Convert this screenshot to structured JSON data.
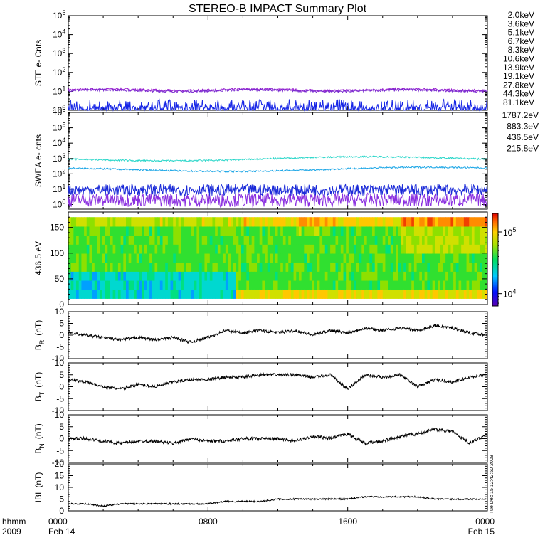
{
  "title": "STEREO-B IMPACT Summary Plot",
  "stamp": "Tue Dec 15 12:42:50 2009",
  "colors": {
    "ste": [
      "#9a1fd0",
      "#7a2ccf",
      "#1726e6",
      "#1b9ad8",
      "#25d1c4",
      "#2ee39a",
      "#21d42b",
      "#c6d81c",
      "#f0c21c",
      "#f38b17",
      "#e23c1c"
    ],
    "swea": [
      "#8a2ee0",
      "#1a2ad8",
      "#1ca6e6",
      "#29d6c9"
    ]
  },
  "chart_data": [
    {
      "type": "line",
      "name": "ste",
      "ylabel": "STE e- Cnts",
      "yscale": "log",
      "ylim": [
        1,
        100000
      ],
      "yticks": [
        [
          "10",
          "0"
        ],
        [
          "10",
          "1"
        ],
        [
          "10",
          "2"
        ],
        [
          "10",
          "3"
        ],
        [
          "10",
          "4"
        ],
        [
          "10",
          "5"
        ]
      ],
      "legend_position": "right",
      "series": [
        {
          "name": "2.0keV",
          "level": 12
        },
        {
          "name": "3.6keV",
          "level": 11
        },
        {
          "name": "5.1keV",
          "level": 1.2
        },
        {
          "name": "6.7keV"
        },
        {
          "name": "8.3keV"
        },
        {
          "name": "10.6keV"
        },
        {
          "name": "13.9keV"
        },
        {
          "name": "19.1keV"
        },
        {
          "name": "27.8keV"
        },
        {
          "name": "44.3keV"
        },
        {
          "name": "81.1keV"
        }
      ]
    },
    {
      "type": "line",
      "name": "swea",
      "ylabel": "SWEA e- cnts",
      "yscale": "log",
      "ylim": [
        0.5,
        1000000
      ],
      "yticks": [
        [
          "10",
          "0"
        ],
        [
          "10",
          "1"
        ],
        [
          "10",
          "2"
        ],
        [
          "10",
          "3"
        ],
        [
          "10",
          "4"
        ],
        [
          "10",
          "5"
        ],
        [
          "10",
          "6"
        ]
      ],
      "legend_position": "right",
      "series": [
        {
          "name": "1787.2eV",
          "level": 2
        },
        {
          "name": "883.3eV",
          "level": 9
        },
        {
          "name": "436.5eV",
          "level": 180
        },
        {
          "name": "215.8eV",
          "level": 900
        }
      ]
    },
    {
      "type": "heatmap",
      "name": "spectrogram",
      "ylabel": "436.5 eV",
      "ylim": [
        0,
        180
      ],
      "yticks": [
        "0",
        "50",
        "100",
        "150"
      ],
      "colorbar": {
        "scale": "log",
        "ticks": [
          [
            "10",
            "4"
          ],
          [
            "10",
            "5"
          ]
        ]
      }
    },
    {
      "type": "line",
      "name": "br",
      "ylabel": "B",
      "ylabel_sub": "R",
      "ylabel_unit": "(nT)",
      "ylim": [
        -10,
        10
      ],
      "yticks": [
        "-10",
        "-5",
        "0",
        "5",
        "10"
      ],
      "x_hours": [
        0,
        1,
        2,
        3,
        4,
        5,
        6,
        7,
        8,
        9,
        10,
        11,
        12,
        13,
        14,
        15,
        16,
        17,
        18,
        19,
        20,
        21,
        22,
        23,
        24
      ],
      "values": [
        1,
        0,
        -1,
        -2,
        -1,
        -2,
        -1,
        -3,
        -1,
        2,
        1,
        2,
        1,
        2,
        0,
        2,
        1,
        3,
        2,
        3,
        2,
        4,
        3,
        1,
        0
      ]
    },
    {
      "type": "line",
      "name": "bt",
      "ylabel": "B",
      "ylabel_sub": "T",
      "ylabel_unit": "(nT)",
      "ylim": [
        -10,
        10
      ],
      "yticks": [
        "-10",
        "-5",
        "0",
        "5",
        "10"
      ],
      "x_hours": [
        0,
        1,
        2,
        3,
        4,
        5,
        6,
        7,
        8,
        9,
        10,
        11,
        12,
        13,
        14,
        15,
        16,
        17,
        18,
        19,
        20,
        21,
        22,
        23,
        24
      ],
      "values": [
        3,
        2,
        0,
        -1,
        1,
        0,
        2,
        3,
        3,
        4,
        4,
        5,
        5,
        5,
        4,
        5,
        -1,
        5,
        4,
        5,
        0,
        3,
        2,
        4,
        5
      ]
    },
    {
      "type": "line",
      "name": "bn",
      "ylabel": "B",
      "ylabel_sub": "N",
      "ylabel_unit": "(nT)",
      "ylim": [
        -10,
        10
      ],
      "yticks": [
        "-10",
        "-5",
        "0",
        "5",
        "10"
      ],
      "x_hours": [
        0,
        1,
        2,
        3,
        4,
        5,
        6,
        7,
        8,
        9,
        10,
        11,
        12,
        13,
        14,
        15,
        16,
        17,
        18,
        19,
        20,
        21,
        22,
        23,
        24
      ],
      "values": [
        0,
        0,
        -1,
        -2,
        -1,
        -1,
        -2,
        0,
        -1,
        -1,
        0,
        0,
        0,
        -1,
        1,
        0,
        2,
        -2,
        -1,
        1,
        2,
        4,
        3,
        -2,
        2
      ]
    },
    {
      "type": "line",
      "name": "bmag",
      "ylabel": "IBI",
      "ylabel_unit": "(nT)",
      "ylim": [
        0,
        20
      ],
      "yticks": [
        "0",
        "5",
        "10",
        "15",
        "20"
      ],
      "x_hours": [
        0,
        1,
        2,
        3,
        4,
        5,
        6,
        7,
        8,
        9,
        10,
        11,
        12,
        13,
        14,
        15,
        16,
        17,
        18,
        19,
        20,
        21,
        22,
        23,
        24
      ],
      "values": [
        3,
        3,
        2,
        3,
        3,
        3,
        3,
        3,
        3,
        4,
        4,
        4,
        5,
        5,
        5,
        5,
        5,
        6,
        6,
        6,
        6,
        5,
        5,
        5,
        5
      ]
    }
  ],
  "xaxis": {
    "corner_top": "hhmm",
    "corner_bottom": "2009",
    "ticks": [
      {
        "label": "0000",
        "sub": "Feb 14",
        "hour": 0
      },
      {
        "label": "0800",
        "sub": "",
        "hour": 8
      },
      {
        "label": "1600",
        "sub": "",
        "hour": 16
      },
      {
        "label": "0000",
        "sub": "Feb 15",
        "hour": 24
      }
    ]
  }
}
